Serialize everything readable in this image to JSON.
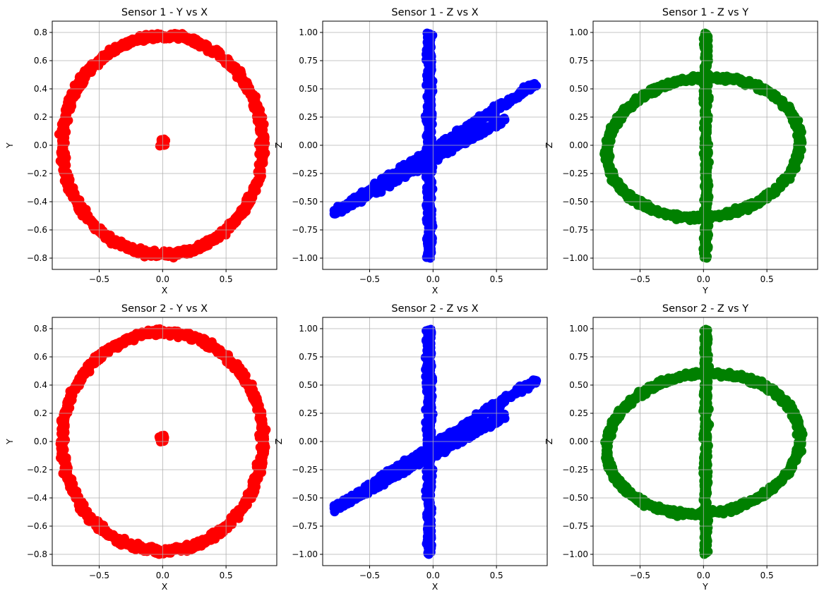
{
  "chart_data": [
    {
      "type": "scatter",
      "title": "Sensor 1 - Y vs X",
      "xlabel": "X",
      "ylabel": "Y",
      "xlim": [
        -0.87,
        0.9
      ],
      "ylim": [
        -0.88,
        0.88
      ],
      "xticks": [
        -0.5,
        0.0,
        0.5
      ],
      "yticks": [
        -0.8,
        -0.6,
        -0.4,
        -0.2,
        0.0,
        0.2,
        0.4,
        0.6,
        0.8
      ],
      "grid": true,
      "color": "#ff0000",
      "shape": "ring-with-center-blob",
      "series": [
        {
          "description_points": [
            [
              0.0,
              0.76
            ],
            [
              0.8,
              0.0
            ],
            [
              0.0,
              -0.76
            ],
            [
              -0.78,
              0.0
            ],
            [
              0.0,
              0.02
            ]
          ]
        }
      ]
    },
    {
      "type": "scatter",
      "title": "Sensor 1 - Z vs X",
      "xlabel": "X",
      "ylabel": "Z",
      "xlim": [
        -0.87,
        0.9
      ],
      "ylim": [
        -1.1,
        1.1
      ],
      "xticks": [
        -0.5,
        0.0,
        0.5
      ],
      "yticks": [
        -1.0,
        -0.75,
        -0.5,
        -0.25,
        0.0,
        0.25,
        0.5,
        0.75,
        1.0
      ],
      "grid": true,
      "color": "#0000ff",
      "shape": "vertical-band-and-diagonal-bands",
      "series": [
        {
          "description_points": [
            [
              0.0,
              1.0
            ],
            [
              0.0,
              -1.0
            ],
            [
              -0.75,
              -0.6
            ],
            [
              0.8,
              0.6
            ]
          ]
        }
      ]
    },
    {
      "type": "scatter",
      "title": "Sensor 1 - Z vs Y",
      "xlabel": "Y",
      "ylabel": "Z",
      "xlim": [
        -0.87,
        0.9
      ],
      "ylim": [
        -1.1,
        1.1
      ],
      "xticks": [
        -0.5,
        0.0,
        0.5
      ],
      "yticks": [
        -1.0,
        -0.75,
        -0.5,
        -0.25,
        0.0,
        0.25,
        0.5,
        0.75,
        1.0
      ],
      "grid": true,
      "color": "#008000",
      "shape": "ellipse-with-vertical-band",
      "series": [
        {
          "description_points": [
            [
              0.0,
              1.0
            ],
            [
              0.0,
              -1.0
            ],
            [
              -0.78,
              0.0
            ],
            [
              0.78,
              0.0
            ]
          ]
        }
      ]
    },
    {
      "type": "scatter",
      "title": "Sensor 2 - Y vs X",
      "xlabel": "X",
      "ylabel": "Y",
      "xlim": [
        -0.87,
        0.9
      ],
      "ylim": [
        -0.88,
        0.88
      ],
      "xticks": [
        -0.5,
        0.0,
        0.5
      ],
      "yticks": [
        -0.8,
        -0.6,
        -0.4,
        -0.2,
        0.0,
        0.2,
        0.4,
        0.6,
        0.8
      ],
      "grid": true,
      "color": "#ff0000",
      "shape": "ring-with-center-blob",
      "series": [
        {
          "description_points": [
            [
              0.0,
              0.76
            ],
            [
              0.8,
              0.0
            ],
            [
              0.0,
              -0.76
            ],
            [
              -0.78,
              0.0
            ],
            [
              0.0,
              0.02
            ]
          ]
        }
      ]
    },
    {
      "type": "scatter",
      "title": "Sensor 2 - Z vs X",
      "xlabel": "X",
      "ylabel": "Z",
      "xlim": [
        -0.87,
        0.9
      ],
      "ylim": [
        -1.1,
        1.1
      ],
      "xticks": [
        -0.5,
        0.0,
        0.5
      ],
      "yticks": [
        -1.0,
        -0.75,
        -0.5,
        -0.25,
        0.0,
        0.25,
        0.5,
        0.75,
        1.0
      ],
      "grid": true,
      "color": "#0000ff",
      "shape": "vertical-band-and-diagonal-bands",
      "series": [
        {
          "description_points": [
            [
              0.0,
              1.0
            ],
            [
              0.0,
              -1.0
            ],
            [
              -0.75,
              -0.6
            ],
            [
              0.8,
              0.6
            ]
          ]
        }
      ]
    },
    {
      "type": "scatter",
      "title": "Sensor 2 - Z vs Y",
      "xlabel": "Y",
      "ylabel": "Z",
      "xlim": [
        -0.87,
        0.9
      ],
      "ylim": [
        -1.1,
        1.1
      ],
      "xticks": [
        -0.5,
        0.0,
        0.5
      ],
      "yticks": [
        -1.0,
        -0.75,
        -0.5,
        -0.25,
        0.0,
        0.25,
        0.5,
        0.75,
        1.0
      ],
      "grid": true,
      "color": "#008000",
      "shape": "ellipse-with-vertical-band",
      "series": [
        {
          "description_points": [
            [
              0.0,
              1.0
            ],
            [
              0.0,
              -1.0
            ],
            [
              -0.78,
              0.0
            ],
            [
              0.78,
              0.0
            ]
          ]
        }
      ]
    }
  ]
}
